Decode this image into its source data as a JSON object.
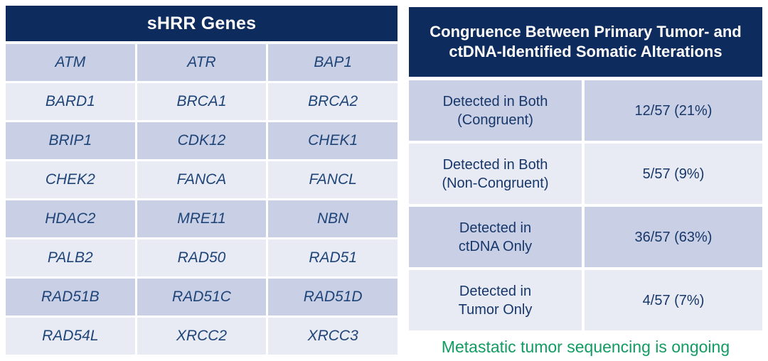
{
  "left_table": {
    "title": "sHRR Genes",
    "genes": [
      [
        "ATM",
        "ATR",
        "BAP1"
      ],
      [
        "BARD1",
        "BRCA1",
        "BRCA2"
      ],
      [
        "BRIP1",
        "CDK12",
        "CHEK1"
      ],
      [
        "CHEK2",
        "FANCA",
        "FANCL"
      ],
      [
        "HDAC2",
        "MRE11",
        "NBN"
      ],
      [
        "PALB2",
        "RAD50",
        "RAD51"
      ],
      [
        "RAD51B",
        "RAD51C",
        "RAD51D"
      ],
      [
        "RAD54L",
        "XRCC2",
        "XRCC3"
      ]
    ]
  },
  "right_table": {
    "title": "Congruence Between Primary Tumor- and ctDNA-Identified Somatic Alterations",
    "rows": [
      {
        "label_line1": "Detected in Both",
        "label_line2": "(Congruent)",
        "value": "12/57 (21%)"
      },
      {
        "label_line1": "Detected in Both",
        "label_line2": "(Non-Congruent)",
        "value": "5/57 (9%)"
      },
      {
        "label_line1": "Detected in",
        "label_line2": "ctDNA Only",
        "value": "36/57 (63%)"
      },
      {
        "label_line1": "Detected in",
        "label_line2": "Tumor Only",
        "value": "4/57 (7%)"
      }
    ]
  },
  "footnote": "Metastatic tumor sequencing is ongoing",
  "colors": {
    "header_navy": "#0d2b5c",
    "row_dark_lavender": "#c9cfe4",
    "row_light_lavender": "#e9ebf4",
    "cell_text_navy": "#1e4478",
    "footnote_green": "#129b62"
  },
  "chart_data": [
    {
      "type": "table",
      "title": "sHRR Genes",
      "rows": [
        [
          "ATM",
          "ATR",
          "BAP1"
        ],
        [
          "BARD1",
          "BRCA1",
          "BRCA2"
        ],
        [
          "BRIP1",
          "CDK12",
          "CHEK1"
        ],
        [
          "CHEK2",
          "FANCA",
          "FANCL"
        ],
        [
          "HDAC2",
          "MRE11",
          "NBN"
        ],
        [
          "PALB2",
          "RAD50",
          "RAD51"
        ],
        [
          "RAD51B",
          "RAD51C",
          "RAD51D"
        ],
        [
          "RAD54L",
          "XRCC2",
          "XRCC3"
        ]
      ]
    },
    {
      "type": "table",
      "title": "Congruence Between Primary Tumor- and ctDNA-Identified Somatic Alterations",
      "rows": [
        [
          "Detected in Both (Congruent)",
          "12/57 (21%)"
        ],
        [
          "Detected in Both (Non-Congruent)",
          "5/57 (9%)"
        ],
        [
          "Detected in ctDNA Only",
          "36/57 (63%)"
        ],
        [
          "Detected in Tumor Only",
          "4/57 (7%)"
        ]
      ],
      "annotation": "Metastatic tumor sequencing is ongoing"
    }
  ]
}
